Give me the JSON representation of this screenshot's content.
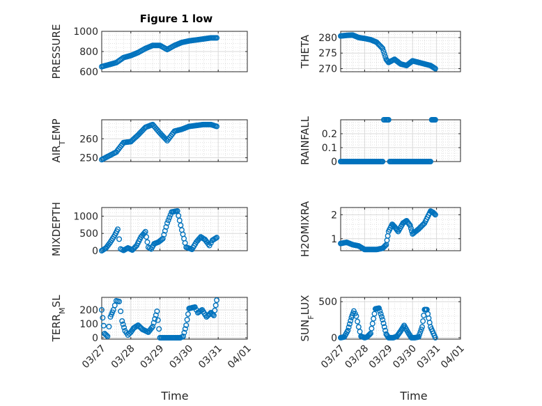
{
  "figure": {
    "title": "Figure 1 low",
    "xlabel": "Time",
    "date_ticks": [
      "03/27",
      "03/28",
      "03/29",
      "03/30",
      "03/31",
      "04/01"
    ],
    "marker_color": "#0072BD"
  },
  "chart_data": [
    {
      "type": "scatter",
      "name": "pressure",
      "ylabel": "PRESSURE",
      "xlim": [
        0,
        5
      ],
      "ylim": [
        600,
        1000
      ],
      "yticks": [
        600,
        800,
        1000
      ],
      "ytick_labels": [
        "600",
        "800",
        "1000"
      ],
      "grid": true,
      "x": [
        0.0,
        0.25,
        0.5,
        0.75,
        1.0,
        1.25,
        1.5,
        1.75,
        2.0,
        2.25,
        2.5,
        2.75,
        3.0,
        3.25,
        3.5,
        3.75,
        3.95
      ],
      "y": [
        650,
        670,
        690,
        740,
        760,
        790,
        830,
        860,
        860,
        820,
        860,
        890,
        905,
        915,
        925,
        935,
        935
      ]
    },
    {
      "type": "scatter",
      "name": "theta",
      "ylabel": "THETA",
      "xlim": [
        0,
        5
      ],
      "ylim": [
        269,
        282
      ],
      "yticks": [
        270,
        275,
        280
      ],
      "ytick_labels": [
        "270",
        "275",
        "280"
      ],
      "grid": true,
      "x": [
        0.0,
        0.25,
        0.5,
        0.75,
        1.0,
        1.25,
        1.5,
        1.75,
        1.9,
        2.0,
        2.25,
        2.5,
        2.75,
        3.0,
        3.25,
        3.5,
        3.75,
        3.95
      ],
      "y": [
        280.5,
        280.7,
        280.8,
        280.0,
        279.7,
        279.3,
        278.5,
        276.5,
        273.0,
        272.0,
        273.0,
        271.5,
        271.0,
        272.5,
        272.0,
        271.5,
        271.0,
        270.0
      ]
    },
    {
      "type": "scatter",
      "name": "air_temp",
      "ylabel": "AIRTEMP",
      "ylabel_parts": [
        "AIR",
        "T",
        "EMP"
      ],
      "xlim": [
        0,
        5
      ],
      "ylim": [
        248,
        270
      ],
      "yticks": [
        250,
        260
      ],
      "ytick_labels": [
        "250",
        "260"
      ],
      "grid": true,
      "x": [
        0.0,
        0.25,
        0.5,
        0.75,
        1.0,
        1.25,
        1.5,
        1.75,
        2.0,
        2.25,
        2.5,
        2.75,
        3.0,
        3.25,
        3.5,
        3.75,
        3.95
      ],
      "y": [
        249,
        251,
        253,
        258,
        258.5,
        262,
        266,
        267.5,
        263,
        259,
        264,
        265,
        266.5,
        267,
        267.5,
        267.5,
        266.5
      ]
    },
    {
      "type": "scatter",
      "name": "rainfall",
      "ylabel": "RAINFALL",
      "xlim": [
        0,
        5
      ],
      "ylim": [
        0,
        0.3
      ],
      "yticks": [
        0,
        0.1,
        0.2
      ],
      "ytick_labels": [
        "0",
        "0.1",
        "0.2"
      ],
      "grid": true,
      "x": [
        0.0,
        0.25,
        0.5,
        0.75,
        1.0,
        1.25,
        1.5,
        1.75,
        1.8,
        1.9,
        2.0,
        2.05,
        2.25,
        2.5,
        2.75,
        3.0,
        3.25,
        3.5,
        3.75,
        3.8,
        3.95
      ],
      "y": [
        0,
        0,
        0,
        0,
        0,
        0,
        0,
        0,
        0.3,
        0.3,
        0.3,
        0,
        0,
        0,
        0,
        0,
        0,
        0,
        0,
        0.3,
        0.3
      ]
    },
    {
      "type": "scatter",
      "name": "mixdepth",
      "ylabel": "MIXDEPTH",
      "xlim": [
        0,
        5
      ],
      "ylim": [
        0,
        1250
      ],
      "yticks": [
        0,
        500,
        1000
      ],
      "ytick_labels": [
        "0",
        "500",
        "1000"
      ],
      "grid": true,
      "x": [
        0.0,
        0.15,
        0.3,
        0.45,
        0.55,
        0.65,
        0.75,
        0.9,
        1.05,
        1.2,
        1.35,
        1.5,
        1.6,
        1.7,
        1.8,
        1.95,
        2.1,
        2.25,
        2.4,
        2.6,
        2.75,
        2.9,
        3.1,
        3.25,
        3.4,
        3.55,
        3.7,
        3.8,
        3.95
      ],
      "y": [
        0,
        80,
        250,
        450,
        620,
        50,
        10,
        80,
        20,
        150,
        400,
        550,
        100,
        50,
        200,
        250,
        350,
        800,
        1120,
        1150,
        600,
        100,
        40,
        250,
        400,
        320,
        150,
        300,
        380
      ]
    },
    {
      "type": "scatter",
      "name": "h2omixra",
      "ylabel": "H2OMIXRA",
      "xlim": [
        0,
        5
      ],
      "ylim": [
        0.5,
        2.3
      ],
      "yticks": [
        1,
        2
      ],
      "ytick_labels": [
        "1",
        "2"
      ],
      "grid": true,
      "x": [
        0.0,
        0.25,
        0.5,
        0.75,
        1.0,
        1.25,
        1.5,
        1.75,
        1.9,
        2.0,
        2.15,
        2.25,
        2.4,
        2.6,
        2.75,
        2.9,
        3.0,
        3.25,
        3.5,
        3.75,
        3.85,
        3.95
      ],
      "y": [
        0.8,
        0.85,
        0.75,
        0.7,
        0.55,
        0.55,
        0.55,
        0.6,
        0.75,
        1.3,
        1.6,
        1.5,
        1.3,
        1.65,
        1.75,
        1.55,
        1.2,
        1.4,
        1.65,
        2.15,
        2.1,
        2.0
      ]
    },
    {
      "type": "scatter",
      "name": "terr_msl",
      "ylabel": "TERRMSL",
      "ylabel_parts": [
        "TERR",
        "M",
        "SL"
      ],
      "xlim": [
        0,
        5
      ],
      "ylim": [
        -10,
        290
      ],
      "yticks": [
        0,
        100,
        200
      ],
      "ytick_labels": [
        "0",
        "100",
        "200"
      ],
      "grid": true,
      "x": [
        0.0,
        0.1,
        0.2,
        0.3,
        0.4,
        0.5,
        0.6,
        0.7,
        0.8,
        0.9,
        1.0,
        1.1,
        1.25,
        1.4,
        1.6,
        1.75,
        1.9,
        2.0,
        2.25,
        2.5,
        2.6,
        2.7,
        2.8,
        2.9,
        3.0,
        3.1,
        3.2,
        3.3,
        3.45,
        3.6,
        3.75,
        3.85,
        3.95
      ],
      "y": [
        200,
        30,
        10,
        150,
        200,
        265,
        260,
        120,
        50,
        20,
        40,
        70,
        90,
        60,
        40,
        80,
        190,
        0,
        0,
        0,
        0,
        0,
        10,
        90,
        210,
        215,
        220,
        180,
        200,
        150,
        180,
        160,
        270
      ]
    },
    {
      "type": "scatter",
      "name": "sun_flux",
      "ylabel": "SUNFLUX",
      "ylabel_parts": [
        "SUN",
        "F",
        "LUX"
      ],
      "xlim": [
        0,
        5
      ],
      "ylim": [
        -20,
        560
      ],
      "yticks": [
        0,
        500
      ],
      "ytick_labels": [
        "0",
        "500"
      ],
      "grid": true,
      "x": [
        0.0,
        0.15,
        0.3,
        0.45,
        0.55,
        0.65,
        0.75,
        0.85,
        1.0,
        1.1,
        1.25,
        1.45,
        1.6,
        1.75,
        1.9,
        2.0,
        2.2,
        2.35,
        2.5,
        2.65,
        2.8,
        2.95,
        3.1,
        3.25,
        3.4,
        3.5,
        3.6,
        3.75,
        3.95
      ],
      "y": [
        0,
        10,
        100,
        280,
        370,
        300,
        150,
        20,
        0,
        10,
        60,
        400,
        410,
        250,
        50,
        0,
        0,
        20,
        90,
        170,
        80,
        0,
        0,
        10,
        150,
        390,
        390,
        150,
        0
      ]
    }
  ]
}
